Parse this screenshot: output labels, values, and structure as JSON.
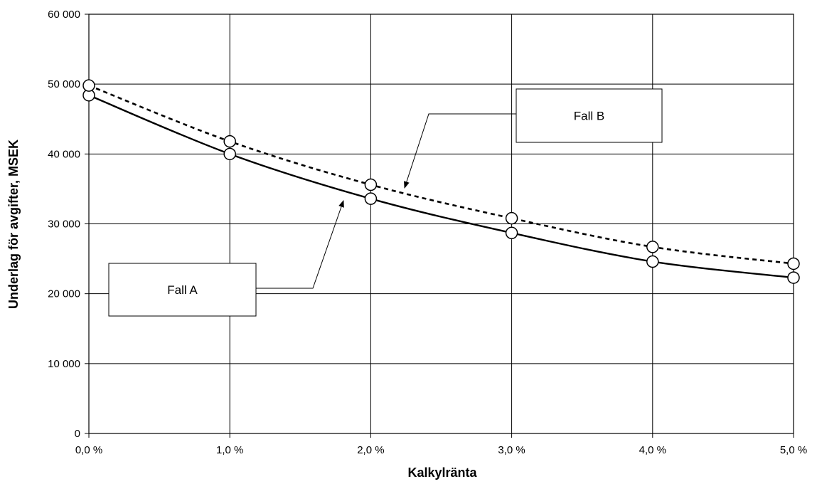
{
  "chart_data": {
    "type": "line",
    "title": "",
    "xlabel": "Kalkylränta",
    "ylabel": "Underlag för avgifter, MSEK",
    "x": [
      0,
      1,
      2,
      3,
      4,
      5
    ],
    "x_tick_labels": [
      "0,0 %",
      "1,0 %",
      "2,0 %",
      "3,0 %",
      "4,0 %",
      "5,0 %"
    ],
    "y_ticks": [
      0,
      10000,
      20000,
      30000,
      40000,
      50000,
      60000
    ],
    "y_tick_labels": [
      "0",
      "10 000",
      "20 000",
      "30 000",
      "40 000",
      "50 000",
      "60 000"
    ],
    "xlim": [
      0,
      5
    ],
    "ylim": [
      0,
      60000
    ],
    "grid": true,
    "series": [
      {
        "name": "Fall A",
        "line_style": "solid",
        "values": [
          48400,
          40000,
          33600,
          28700,
          24600,
          22300
        ]
      },
      {
        "name": "Fall B",
        "line_style": "dashed",
        "values": [
          49800,
          41800,
          35600,
          30800,
          26700,
          24300
        ]
      }
    ],
    "annotations": [
      {
        "label": "Fall A",
        "series": "Fall A"
      },
      {
        "label": "Fall B",
        "series": "Fall B"
      }
    ]
  }
}
